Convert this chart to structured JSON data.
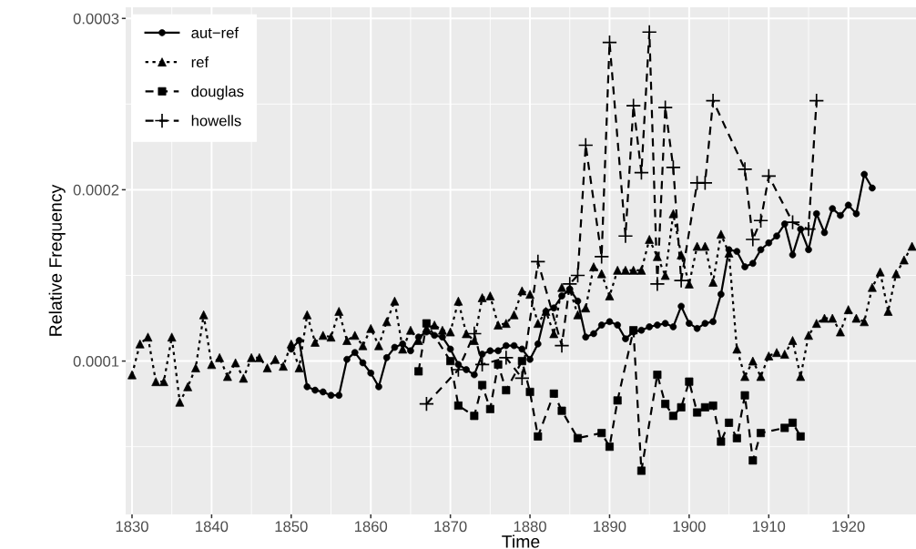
{
  "chart_data": {
    "type": "line",
    "xlabel": "Time",
    "ylabel": "Relative Frequency",
    "xlim": [
      1829.2,
      1928.5
    ],
    "xticks": [
      1830,
      1840,
      1850,
      1860,
      1870,
      1880,
      1890,
      1900,
      1910,
      1920
    ],
    "ylim": [
      1.05e-05,
      0.0003065
    ],
    "yticks": [
      0.0001,
      0.0002,
      0.0003
    ],
    "grid": true,
    "legend": "top left",
    "series": [
      {
        "name": "aut−ref",
        "color": "#000000",
        "marker": "circle",
        "line_style": "solid",
        "x": [
          1850,
          1851,
          1852,
          1853,
          1854,
          1855,
          1856,
          1857,
          1858,
          1859,
          1860,
          1861,
          1862,
          1863,
          1864,
          1865,
          1866,
          1867,
          1868,
          1869,
          1870,
          1871,
          1872,
          1873,
          1874,
          1875,
          1876,
          1877,
          1878,
          1879,
          1880,
          1881,
          1882,
          1883,
          1884,
          1885,
          1886,
          1887,
          1888,
          1889,
          1890,
          1891,
          1892,
          1893,
          1894,
          1895,
          1896,
          1897,
          1898,
          1899,
          1900,
          1901,
          1902,
          1903,
          1904,
          1905,
          1906,
          1907,
          1908,
          1909,
          1910,
          1911,
          1912,
          1913,
          1914,
          1915,
          1916,
          1917,
          1918,
          1919,
          1920,
          1921,
          1922,
          1923
        ],
        "values": [
          0.000107,
          0.000112,
          8.5e-05,
          8.3e-05,
          8.2e-05,
          8e-05,
          8e-05,
          0.000101,
          0.000105,
          9.9e-05,
          9.3e-05,
          8.5e-05,
          0.000102,
          0.000108,
          0.00011,
          0.000106,
          0.000114,
          0.000117,
          0.000115,
          0.000114,
          0.000107,
          9.8e-05,
          9.5e-05,
          9.2e-05,
          0.000104,
          0.000106,
          0.000106,
          0.000109,
          0.000109,
          0.000107,
          0.000101,
          0.00011,
          0.000129,
          0.000131,
          0.000138,
          0.000142,
          0.000135,
          0.000114,
          0.000116,
          0.000121,
          0.000123,
          0.000121,
          0.000113,
          0.000117,
          0.000118,
          0.00012,
          0.000121,
          0.000122,
          0.00012,
          0.000132,
          0.000122,
          0.000119,
          0.000122,
          0.000123,
          0.000139,
          0.000165,
          0.000164,
          0.000155,
          0.000157,
          0.000165,
          0.000169,
          0.000173,
          0.00018,
          0.000162,
          0.000177,
          0.000165,
          0.000186,
          0.000175,
          0.000189,
          0.000185,
          0.000191,
          0.000186,
          0.000209,
          0.000201
        ]
      },
      {
        "name": "ref",
        "color": "#000000",
        "marker": "triangle",
        "line_style": "dotted",
        "x": [
          1830,
          1831,
          1832,
          1833,
          1834,
          1835,
          1836,
          1837,
          1838,
          1839,
          1840,
          1841,
          1842,
          1843,
          1844,
          1845,
          1846,
          1847,
          1848,
          1849,
          1850,
          1851,
          1852,
          1853,
          1854,
          1855,
          1856,
          1857,
          1858,
          1859,
          1860,
          1861,
          1862,
          1863,
          1864,
          1865,
          1866,
          1867,
          1868,
          1869,
          1870,
          1871,
          1872,
          1873,
          1874,
          1875,
          1876,
          1877,
          1878,
          1879,
          1880,
          1881,
          1882,
          1883,
          1884,
          1885,
          1886,
          1887,
          1888,
          1889,
          1890,
          1891,
          1892,
          1893,
          1894,
          1895,
          1896,
          1897,
          1898,
          1899,
          1900,
          1901,
          1902,
          1903,
          1904,
          1905,
          1906,
          1907,
          1908,
          1909,
          1910,
          1911,
          1912,
          1913,
          1914,
          1915,
          1916,
          1917,
          1918,
          1919,
          1920,
          1921,
          1922,
          1923,
          1924,
          1925,
          1926,
          1927,
          1928
        ],
        "values": [
          9.2e-05,
          0.00011,
          0.000114,
          8.8e-05,
          8.8e-05,
          0.000114,
          7.6e-05,
          8.5e-05,
          9.6e-05,
          0.000127,
          9.8e-05,
          0.000102,
          9.1e-05,
          9.9e-05,
          9e-05,
          0.000102,
          0.000102,
          9.6e-05,
          0.000101,
          9.7e-05,
          0.00011,
          9.6e-05,
          0.000127,
          0.000111,
          0.000115,
          0.000114,
          0.000129,
          0.000112,
          0.000115,
          0.000109,
          0.000119,
          0.000109,
          0.000123,
          0.000135,
          0.000107,
          0.000118,
          0.000112,
          0.000119,
          0.000121,
          0.000118,
          0.000117,
          0.000135,
          0.000116,
          0.000112,
          0.000137,
          0.000138,
          0.000121,
          0.000122,
          0.000127,
          0.000141,
          0.000139,
          0.000122,
          0.000129,
          0.000116,
          0.000143,
          0.000142,
          0.000127,
          0.000131,
          0.000155,
          0.000151,
          0.000138,
          0.000153,
          0.000153,
          0.000153,
          0.000153,
          0.000171,
          0.000161,
          0.00015,
          0.000186,
          0.000162,
          0.000145,
          0.000167,
          0.000167,
          0.000146,
          0.000174,
          0.000163,
          0.000107,
          9.1e-05,
          0.0001,
          9.1e-05,
          0.000103,
          0.000105,
          0.000104,
          0.000112,
          9.1e-05,
          0.000115,
          0.000122,
          0.000125,
          0.000125,
          0.000117,
          0.00013,
          0.000125,
          0.000123,
          0.000143,
          0.000152,
          0.000129,
          0.000151,
          0.000159,
          0.000167
        ]
      },
      {
        "name": "douglas",
        "color": "#000000",
        "marker": "square",
        "line_style": "dashed",
        "x": [
          1866,
          1867,
          1870,
          1871,
          1873,
          1874,
          1875,
          1876,
          1877,
          1879,
          1880,
          1881,
          1883,
          1884,
          1886,
          1889,
          1890,
          1891,
          1893,
          1894,
          1896,
          1897,
          1898,
          1899,
          1900,
          1901,
          1902,
          1903,
          1904,
          1905,
          1906,
          1907,
          1908,
          1909,
          1912,
          1913,
          1914
        ],
        "values": [
          9.4e-05,
          0.000122,
          0.0001,
          7.4e-05,
          6.8e-05,
          8.6e-05,
          7.2e-05,
          9.8e-05,
          8.3e-05,
          0.0001,
          8.2e-05,
          5.6e-05,
          8.1e-05,
          7.1e-05,
          5.5e-05,
          5.8e-05,
          5e-05,
          7.7e-05,
          0.000118,
          3.6e-05,
          9.2e-05,
          7.5e-05,
          6.8e-05,
          7.3e-05,
          8.8e-05,
          7e-05,
          7.3e-05,
          7.4e-05,
          5.3e-05,
          6.4e-05,
          5.5e-05,
          8e-05,
          4.2e-05,
          5.8e-05,
          6.1e-05,
          6.4e-05,
          5.6e-05
        ]
      },
      {
        "name": "howells",
        "color": "#000000",
        "marker": "cross",
        "line_style": "dashed",
        "x": [
          1867,
          1871,
          1873,
          1874,
          1877,
          1879,
          1881,
          1884,
          1885,
          1886,
          1887,
          1889,
          1890,
          1892,
          1893,
          1894,
          1895,
          1896,
          1897,
          1898,
          1899,
          1901,
          1902,
          1903,
          1907,
          1908,
          1909,
          1910,
          1913,
          1915,
          1916
        ],
        "values": [
          7.5e-05,
          9.5e-05,
          0.000116,
          9.8e-05,
          0.000102,
          9e-05,
          0.000158,
          0.000109,
          0.000145,
          0.00015,
          0.000226,
          0.000161,
          0.000286,
          0.000173,
          0.000249,
          0.00021,
          0.000292,
          0.000145,
          0.000248,
          0.000213,
          0.000147,
          0.000204,
          0.000204,
          0.000252,
          0.000212,
          0.000171,
          0.000182,
          0.000208,
          0.000181,
          0.000177,
          0.000252
        ]
      }
    ]
  }
}
